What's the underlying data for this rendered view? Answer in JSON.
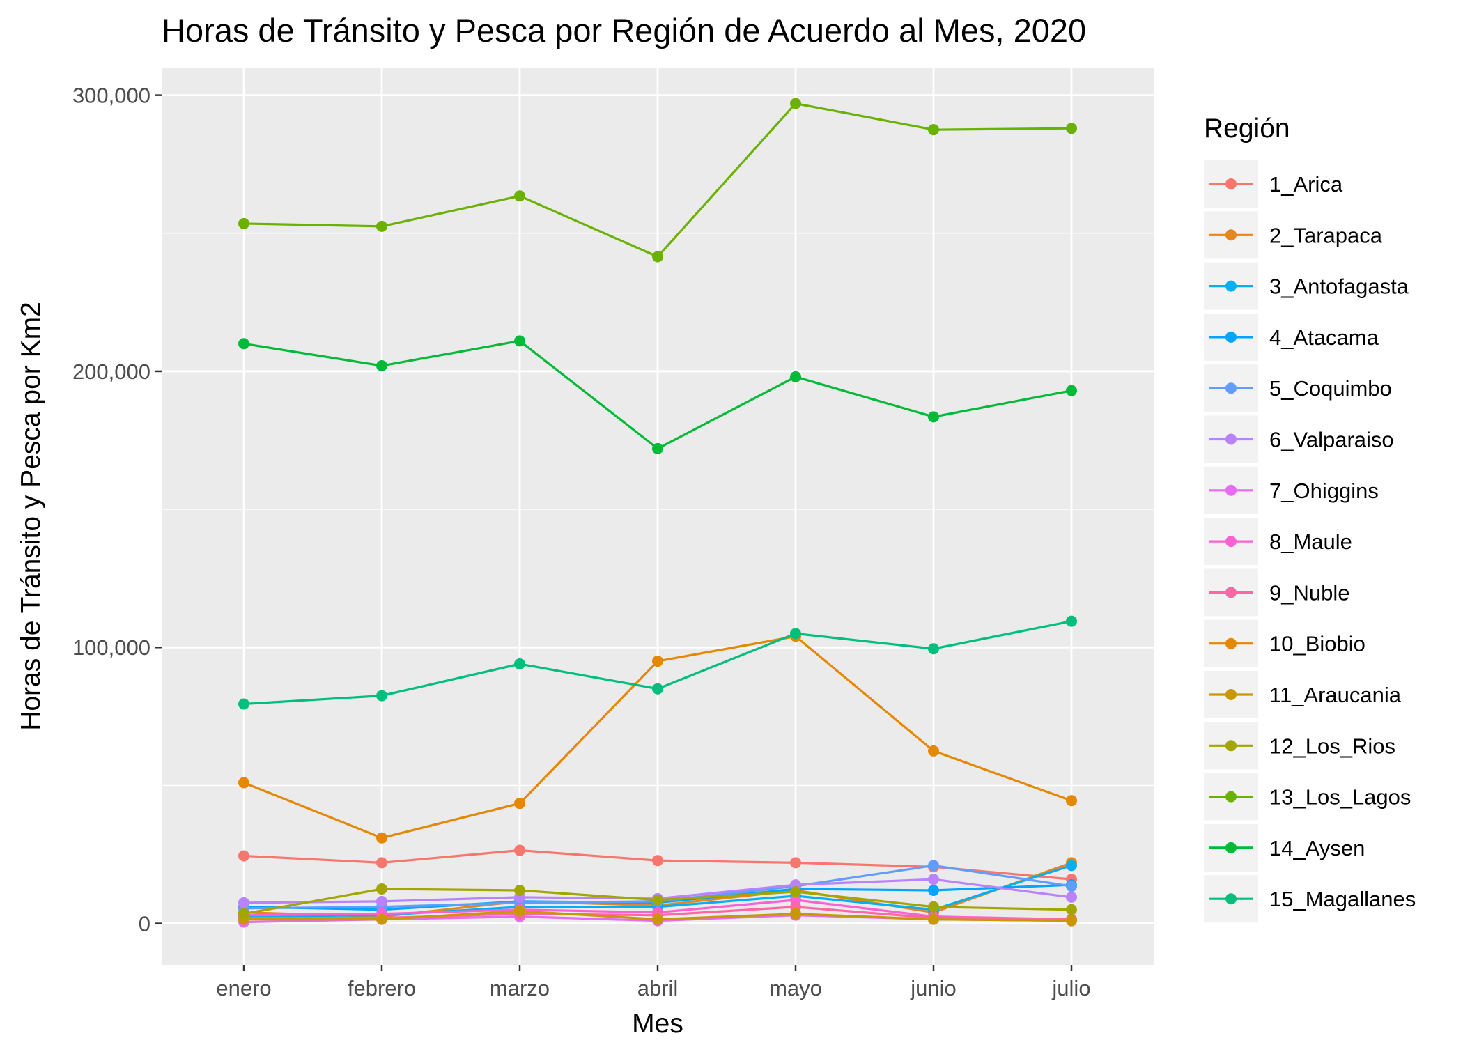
{
  "chart_data": {
    "type": "line",
    "title": "Horas de Tránsito y Pesca por Región de Acuerdo al Mes, 2020",
    "xlabel": "Mes",
    "ylabel": "Horas de Tránsito y Pesca por Km2",
    "categories": [
      "enero",
      "febrero",
      "marzo",
      "abril",
      "mayo",
      "junio",
      "julio"
    ],
    "ylim": [
      -15000,
      310000
    ],
    "yticks": [
      0,
      100000,
      200000,
      300000
    ],
    "ytick_labels": [
      "0",
      "100,000",
      "200,000",
      "300,000"
    ],
    "grid": true,
    "legend_title": "Región",
    "legend_position": "right",
    "series": [
      {
        "name": "1_Arica",
        "color": "#F8766D",
        "values": [
          24500,
          22000,
          26500,
          22800,
          22000,
          20500,
          16000
        ]
      },
      {
        "name": "2_Tarapaca",
        "color": "#E7851E",
        "values": [
          4000,
          2500,
          8000,
          6500,
          12000,
          4000,
          22000
        ]
      },
      {
        "name": "3_Antofagasta",
        "color": "#00B0F6",
        "values": [
          2500,
          3000,
          6000,
          6000,
          10000,
          5000,
          21000
        ]
      },
      {
        "name": "4_Atacama",
        "color": "#00A5FF",
        "values": [
          6000,
          5000,
          8000,
          7500,
          12500,
          12000,
          14000
        ]
      },
      {
        "name": "5_Coquimbo",
        "color": "#619CFF",
        "values": [
          5500,
          6000,
          7500,
          8000,
          13500,
          21000,
          13500
        ]
      },
      {
        "name": "6_Valparaiso",
        "color": "#B983FF",
        "values": [
          7500,
          8000,
          9500,
          9000,
          14000,
          16000,
          9500
        ]
      },
      {
        "name": "7_Ohiggins",
        "color": "#E76BF3",
        "values": [
          500,
          1500,
          2500,
          1000,
          3000,
          1500,
          1000
        ]
      },
      {
        "name": "8_Maule",
        "color": "#FD61D1",
        "values": [
          3000,
          3500,
          5000,
          4000,
          8500,
          2500,
          1500
        ]
      },
      {
        "name": "9_Nuble",
        "color": "#FF67A4",
        "values": [
          2000,
          2000,
          3500,
          3000,
          6000,
          2000,
          1500
        ]
      },
      {
        "name": "10_Biobio",
        "color": "#E58700",
        "values": [
          51000,
          31000,
          43500,
          95000,
          104000,
          62500,
          44500
        ]
      },
      {
        "name": "11_Araucania",
        "color": "#C99800",
        "values": [
          1500,
          1500,
          4500,
          1500,
          3500,
          1500,
          1000
        ]
      },
      {
        "name": "12_Los_Rios",
        "color": "#A3A500",
        "values": [
          3500,
          12500,
          12000,
          8500,
          11500,
          6000,
          5000
        ]
      },
      {
        "name": "13_Los_Lagos",
        "color": "#6BB100",
        "values": [
          253500,
          252500,
          263500,
          241500,
          297000,
          287500,
          288000
        ]
      },
      {
        "name": "14_Aysen",
        "color": "#00BA38",
        "values": [
          210000,
          202000,
          211000,
          172000,
          198000,
          183500,
          193000
        ]
      },
      {
        "name": "15_Magallanes",
        "color": "#00BF7D",
        "values": [
          79500,
          82500,
          94000,
          85000,
          105000,
          99500,
          109500
        ]
      }
    ],
    "colors": {
      "panel_background": "#EBEBEB",
      "grid_major": "#FFFFFF",
      "legend_key_background": "#F2F2F2",
      "tick_text": "#4D4D4D"
    }
  }
}
